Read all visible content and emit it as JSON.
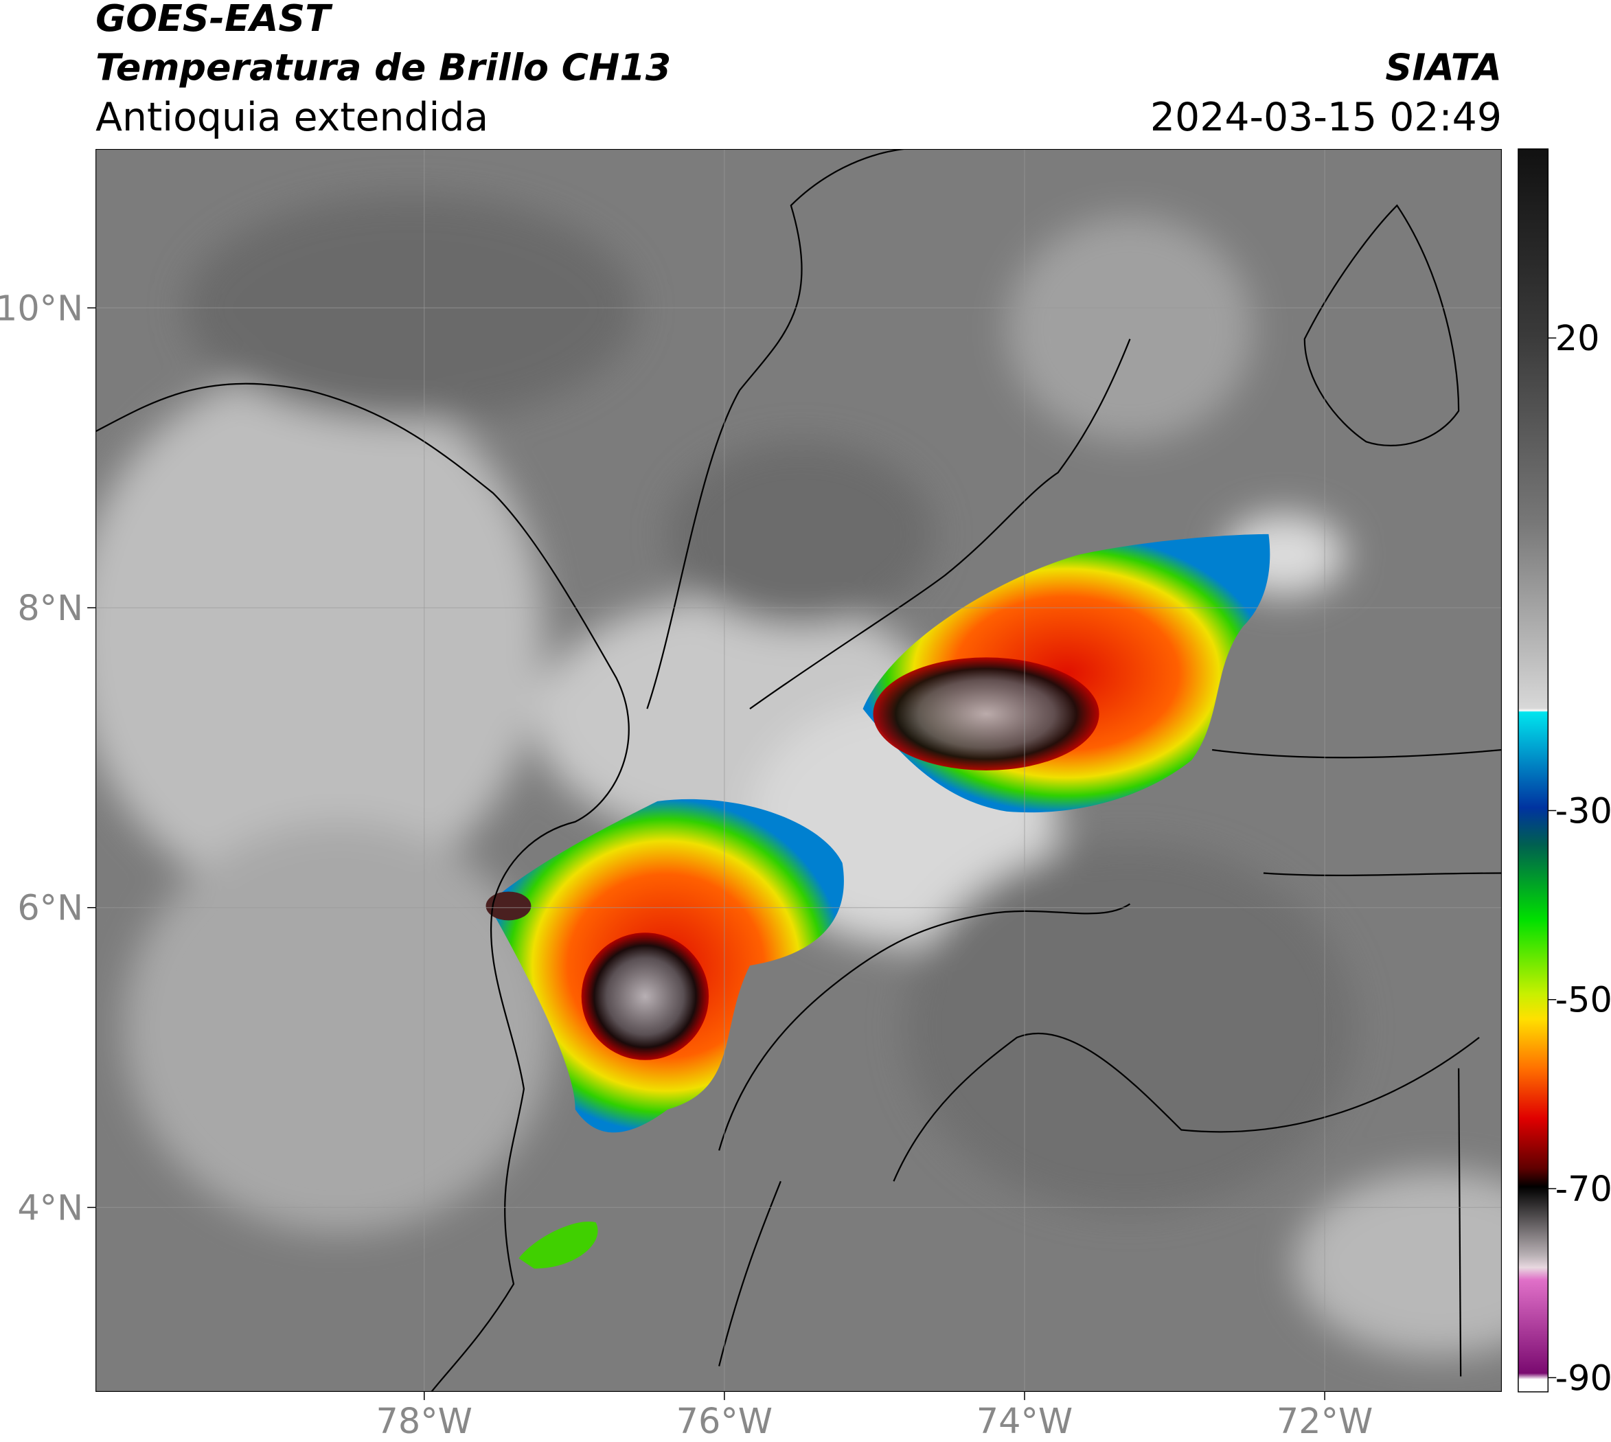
{
  "header": {
    "title": "GOES-EAST",
    "subtitle": "Temperatura de Brillo CH13",
    "region": "Antioquia extendida",
    "source": "SIATA",
    "datetime": "2024-03-15 02:49"
  },
  "map": {
    "lonlim": [
      -80.19,
      -70.82
    ],
    "latlim": [
      2.77,
      11.06
    ],
    "lonticks": [
      {
        "value": -78,
        "label": "78°W"
      },
      {
        "value": -76,
        "label": "76°W"
      },
      {
        "value": -74,
        "label": "74°W"
      },
      {
        "value": -72,
        "label": "72°W"
      }
    ],
    "latticks": [
      {
        "value": 10,
        "label": "10°N"
      },
      {
        "value": 8,
        "label": "8°N"
      },
      {
        "value": 6,
        "label": "6°N"
      },
      {
        "value": 4,
        "label": "4°N"
      }
    ],
    "grid": true
  },
  "colorbar": {
    "lim": [
      -91.5,
      40
    ],
    "ticks": [
      20,
      -30,
      -50,
      -70,
      -90
    ]
  }
}
